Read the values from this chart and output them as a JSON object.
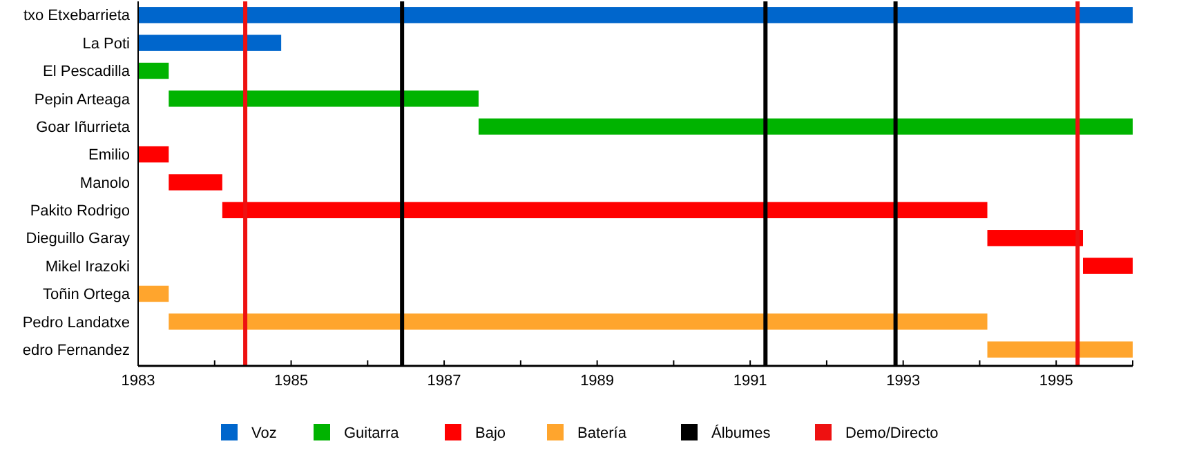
{
  "chart_data": {
    "type": "bar",
    "orientation": "horizontal",
    "legend": "bottom",
    "categories": [
      "txo Etxebarrieta",
      "La Poti",
      "El Pescadilla",
      "Pepin Arteaga",
      "Goar Iñurrieta",
      "Emilio",
      "Manolo",
      "Pakito Rodrigo",
      "Dieguillo Garay",
      "Mikel Irazoki",
      "Toñin Ortega",
      "Pedro Landatxe",
      "edro Fernandez"
    ],
    "series": [
      {
        "name": "Voz",
        "color": "#0066cc",
        "values": [
          13,
          1.87,
          null,
          null,
          null,
          null,
          null,
          null,
          null,
          null,
          null,
          null,
          null
        ],
        "base": [
          1983,
          1983,
          null,
          null,
          null,
          null,
          null,
          null,
          null,
          null,
          null,
          null,
          null
        ]
      },
      {
        "name": "Guitarra",
        "color": "#00b300",
        "values": [
          null,
          null,
          0.4,
          4.05,
          8.55,
          null,
          null,
          null,
          null,
          null,
          null,
          null,
          null
        ],
        "base": [
          null,
          null,
          1983,
          1983.4,
          1987.45,
          null,
          null,
          null,
          null,
          null,
          null,
          null,
          null
        ]
      },
      {
        "name": "Bajo",
        "color": "#ff0000",
        "values": [
          null,
          null,
          null,
          null,
          null,
          0.4,
          0.7,
          10,
          1.25,
          0.65,
          null,
          null,
          null
        ],
        "base": [
          null,
          null,
          null,
          null,
          null,
          1983,
          1983.4,
          1984.1,
          1994.1,
          1995.35,
          null,
          null,
          null
        ]
      },
      {
        "name": "Batería",
        "color": "#ffa52d",
        "values": [
          null,
          null,
          null,
          null,
          null,
          null,
          null,
          null,
          null,
          null,
          0.4,
          10.7,
          1.9
        ],
        "base": [
          null,
          null,
          null,
          null,
          null,
          null,
          null,
          null,
          null,
          null,
          1983,
          1983.4,
          1994.1
        ]
      }
    ],
    "ref_lines": [
      {
        "axis": "x",
        "value": 1986.45,
        "label": "Álbumes",
        "color": "#000000"
      },
      {
        "axis": "x",
        "value": 1984.4,
        "label": "Demo/Directo",
        "color": "#ee1111"
      },
      {
        "axis": "x",
        "value": 1991.2,
        "color": "#000000"
      },
      {
        "axis": "x",
        "value": 1992.9,
        "color": "#000000"
      },
      {
        "axis": "x",
        "value": 1995.28,
        "color": "#ee1111"
      }
    ],
    "xlim": [
      1983,
      1996
    ],
    "xticks": [
      1983,
      {
        "value": 1984,
        "label": null
      },
      1985,
      {
        "value": 1986,
        "label": null
      },
      1987,
      {
        "value": 1988,
        "label": null
      },
      1989,
      {
        "value": 1990,
        "label": null
      },
      1991,
      {
        "value": 1992,
        "label": null
      },
      1993,
      {
        "value": 1994,
        "label": null
      },
      1995,
      {
        "value": 1996,
        "label": null
      }
    ]
  }
}
